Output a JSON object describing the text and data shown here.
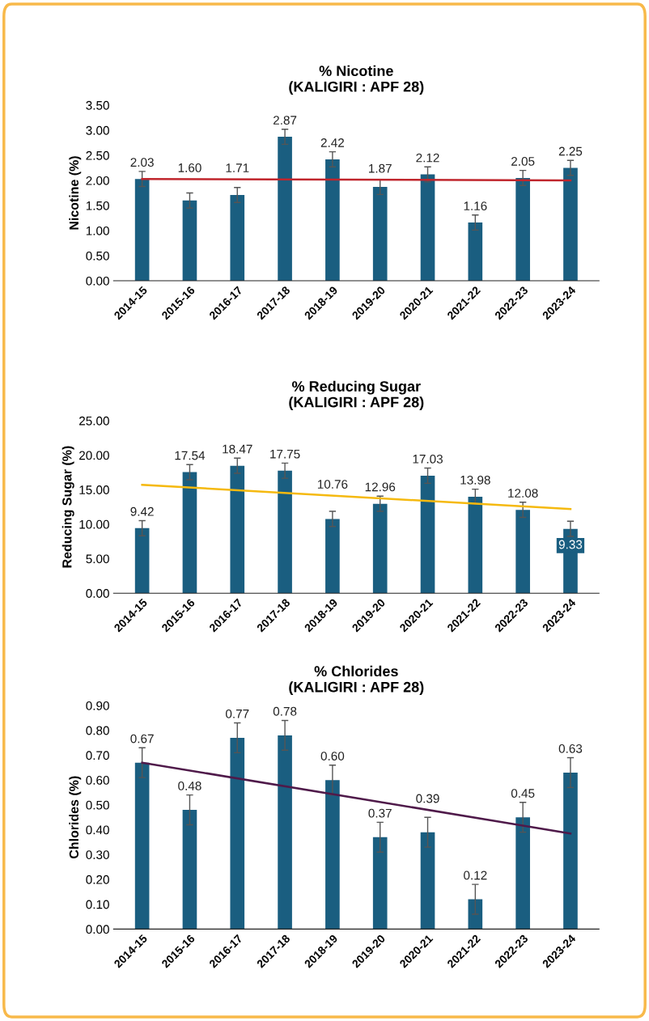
{
  "chart_data": [
    {
      "type": "bar",
      "title": "% Nicotine\n(KALIGIRI : APF 28)",
      "ylabel": "Nicotine (%)",
      "categories": [
        "2014-15",
        "2015-16",
        "2016-17",
        "2017-18",
        "2018-19",
        "2019-20",
        "2020-21",
        "2021-22",
        "2022-23",
        "2023-24"
      ],
      "series": [
        {
          "color": "#1a5e80",
          "values": [
            2.03,
            1.6,
            1.71,
            2.87,
            2.42,
            1.87,
            2.12,
            1.16,
            2.05,
            2.25
          ],
          "errors": [
            0.15,
            0.15,
            0.15,
            0.15,
            0.15,
            0.15,
            0.15,
            0.15,
            0.15,
            0.15
          ],
          "value_labels": [
            "2.03",
            "1.60",
            "1.71",
            "2.87",
            "2.42",
            "1.87",
            "2.12",
            "1.16",
            "2.05",
            "2.25"
          ]
        },
        {
          "type": "line",
          "color": "#c0262d",
          "x": [
            "2014-15",
            "2023-24"
          ],
          "values": [
            2.03,
            2.0
          ]
        }
      ],
      "ylim": [
        0,
        3.5
      ],
      "yticks": [
        {
          "value": 0,
          "label": "0.00"
        },
        {
          "value": 0.5,
          "label": "0.50"
        },
        {
          "value": 1,
          "label": "1.00"
        },
        {
          "value": 1.5,
          "label": "1.50"
        },
        {
          "value": 2,
          "label": "2.00"
        },
        {
          "value": 2.5,
          "label": "2.50"
        },
        {
          "value": 3,
          "label": "3.00"
        },
        {
          "value": 3.5,
          "label": "3.50"
        }
      ],
      "grid": false,
      "legend": false
    },
    {
      "type": "bar",
      "title": "% Reducing Sugar\n(KALIGIRI : APF 28)",
      "ylabel": "Reducing Sugar (%)",
      "categories": [
        "2014-15",
        "2015-16",
        "2016-17",
        "2017-18",
        "2018-19",
        "2019-20",
        "2020-21",
        "2021-22",
        "2022-23",
        "2023-24"
      ],
      "series": [
        {
          "color": "#1a5e80",
          "values": [
            9.42,
            17.54,
            18.47,
            17.75,
            10.76,
            12.96,
            17.03,
            13.98,
            12.08,
            9.33
          ],
          "errors": [
            1.1,
            1.1,
            1.1,
            1.1,
            1.1,
            1.1,
            1.1,
            1.1,
            1.1,
            1.1
          ],
          "value_labels": [
            "9.42",
            "17.54",
            "18.47",
            "17.75",
            "10.76",
            "12.96",
            "17.03",
            "13.98",
            "12.08",
            "9.33"
          ]
        },
        {
          "type": "line",
          "color": "#f5b90f",
          "x": [
            "2014-15",
            "2023-24"
          ],
          "values": [
            15.7,
            12.2
          ]
        }
      ],
      "ylim": [
        0,
        25
      ],
      "yticks": [
        {
          "value": 0,
          "label": "0.00"
        },
        {
          "value": 5,
          "label": "5.00"
        },
        {
          "value": 10,
          "label": "10.00"
        },
        {
          "value": 15,
          "label": "15.00"
        },
        {
          "value": 20,
          "label": "20.00"
        },
        {
          "value": 25,
          "label": "25.00"
        }
      ],
      "grid": false,
      "legend": false
    },
    {
      "type": "bar",
      "title": "% Chlorides\n(KALIGIRI : APF 28)",
      "ylabel": "Chlorides (%)",
      "categories": [
        "2014-15",
        "2015-16",
        "2016-17",
        "2017-18",
        "2018-19",
        "2019-20",
        "2020-21",
        "2021-22",
        "2022-23",
        "2023-24"
      ],
      "series": [
        {
          "color": "#1a5e80",
          "values": [
            0.67,
            0.48,
            0.77,
            0.78,
            0.6,
            0.37,
            0.39,
            0.12,
            0.45,
            0.63
          ],
          "errors": [
            0.06,
            0.06,
            0.06,
            0.06,
            0.06,
            0.06,
            0.06,
            0.06,
            0.06,
            0.06
          ],
          "value_labels": [
            "0.67",
            "0.48",
            "0.77",
            "0.78",
            "0.60",
            "0.37",
            "0.39",
            "0.12",
            "0.45",
            "0.63"
          ]
        },
        {
          "type": "line",
          "color": "#4f1a4a",
          "x": [
            "2014-15",
            "2023-24"
          ],
          "values": [
            0.67,
            0.385
          ]
        }
      ],
      "ylim": [
        0,
        0.9
      ],
      "yticks": [
        {
          "value": 0,
          "label": "0.00"
        },
        {
          "value": 0.1,
          "label": "0.10"
        },
        {
          "value": 0.2,
          "label": "0.20"
        },
        {
          "value": 0.3,
          "label": "0.30"
        },
        {
          "value": 0.4,
          "label": "0.40"
        },
        {
          "value": 0.5,
          "label": "0.50"
        },
        {
          "value": 0.6,
          "label": "0.60"
        },
        {
          "value": 0.7,
          "label": "0.70"
        },
        {
          "value": 0.8,
          "label": "0.80"
        },
        {
          "value": 0.9,
          "label": "0.90"
        }
      ],
      "grid": false,
      "legend": false
    }
  ]
}
